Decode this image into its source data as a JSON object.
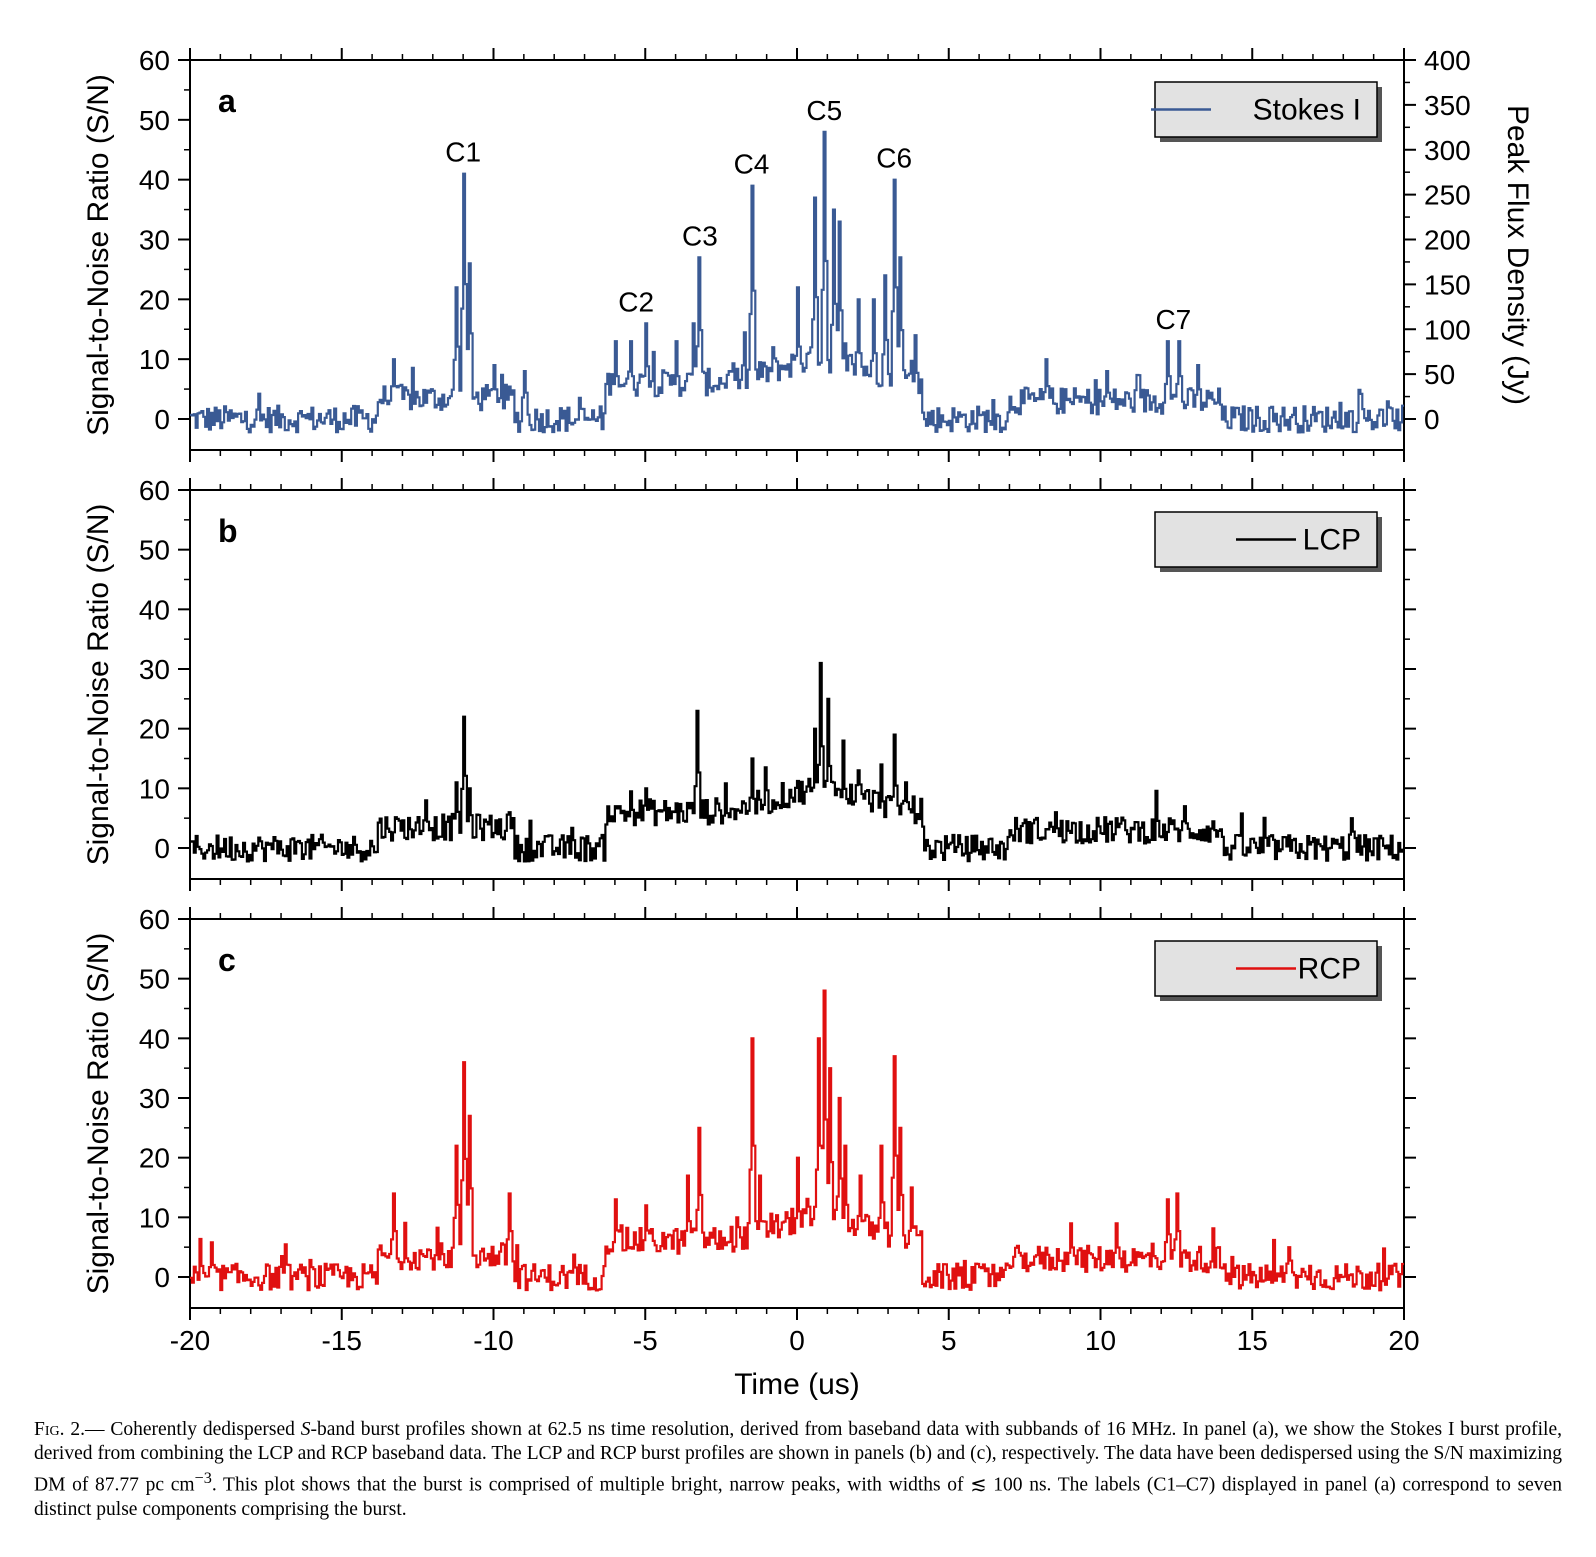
{
  "figure": {
    "caption_label": "Fig. 2.—",
    "caption_parts": {
      "p1": " Coherently dedispersed ",
      "s_band": "S",
      "p2": "-band burst profiles shown at 62.5 ns time resolution, derived from baseband data with subbands of 16 MHz. In panel (a), we show the Stokes I burst profile, derived from combining the LCP and RCP baseband data. The LCP and RCP burst profiles are shown in panels (b) and (c), respectively. The data have been dedispersed using the S/N maximizing DM of 87.77 pc cm",
      "exp": "−3",
      "p3": ". This plot shows that the burst is comprised of multiple bright, narrow peaks, with widths of ≲ 100 ns. The labels (C1–C7) displayed in panel (a) correspond to seven distinct pulse components comprising the burst."
    }
  },
  "colors": {
    "stokes": "#3a5a94",
    "lcp": "#000000",
    "rcp": "#e01010",
    "legend_bg": "#e2e2e2"
  },
  "chart_data": [
    {
      "type": "line",
      "panel": "a",
      "xlabel": "",
      "ylabel": "Signal-to-Noise Ratio (S/N)",
      "y2label": "Peak Flux Density (Jy)",
      "xlim": [
        -20,
        20
      ],
      "ylim": [
        -5,
        60
      ],
      "y2lim": [
        -34,
        400
      ],
      "y_ticks": [
        0,
        10,
        20,
        30,
        40,
        50,
        60
      ],
      "y2_ticks": [
        0,
        50,
        100,
        150,
        200,
        250,
        300,
        350,
        400
      ],
      "x_ticks": [
        -20,
        -15,
        -10,
        -5,
        0,
        5,
        10,
        15,
        20
      ],
      "series": [
        {
          "name": "Stokes I",
          "color": "#3a5a94",
          "step": 0.0625,
          "peaks": [
            {
              "x": -13.3,
              "y": 10
            },
            {
              "x": -11.2,
              "y": 22
            },
            {
              "x": -11.0,
              "y": 41
            },
            {
              "x": -10.8,
              "y": 26
            },
            {
              "x": -10.0,
              "y": 9
            },
            {
              "x": -9.0,
              "y": 8
            },
            {
              "x": -6.0,
              "y": 13
            },
            {
              "x": -5.5,
              "y": 13
            },
            {
              "x": -5.0,
              "y": 16
            },
            {
              "x": -4.0,
              "y": 13
            },
            {
              "x": -3.4,
              "y": 16
            },
            {
              "x": -3.2,
              "y": 27
            },
            {
              "x": -2.2,
              "y": 8
            },
            {
              "x": -1.5,
              "y": 39
            },
            {
              "x": -0.8,
              "y": 12
            },
            {
              "x": 0.0,
              "y": 22
            },
            {
              "x": 0.6,
              "y": 37
            },
            {
              "x": 0.9,
              "y": 48
            },
            {
              "x": 1.2,
              "y": 35
            },
            {
              "x": 1.4,
              "y": 33
            },
            {
              "x": 2.0,
              "y": 20
            },
            {
              "x": 2.5,
              "y": 20
            },
            {
              "x": 2.9,
              "y": 24
            },
            {
              "x": 3.2,
              "y": 40
            },
            {
              "x": 3.4,
              "y": 27
            },
            {
              "x": 3.9,
              "y": 14
            },
            {
              "x": 8.2,
              "y": 10
            },
            {
              "x": 10.2,
              "y": 8
            },
            {
              "x": 12.2,
              "y": 13
            },
            {
              "x": 12.6,
              "y": 13
            },
            {
              "x": 13.2,
              "y": 9
            }
          ]
        }
      ],
      "legend": "Stokes I",
      "legend_position": "top-right",
      "annotations": [
        {
          "text": "C1",
          "x": -11.0,
          "y": 41
        },
        {
          "text": "C2",
          "x": -5.3,
          "y": 16
        },
        {
          "text": "C3",
          "x": -3.2,
          "y": 27
        },
        {
          "text": "C4",
          "x": -1.5,
          "y": 39
        },
        {
          "text": "C5",
          "x": 0.9,
          "y": 48
        },
        {
          "text": "C6",
          "x": 3.2,
          "y": 40
        },
        {
          "text": "C7",
          "x": 12.4,
          "y": 13
        }
      ]
    },
    {
      "type": "line",
      "panel": "b",
      "xlabel": "",
      "ylabel": "Signal-to-Noise Ratio (S/N)",
      "xlim": [
        -20,
        20
      ],
      "ylim": [
        -5,
        60
      ],
      "y_ticks": [
        0,
        10,
        20,
        30,
        40,
        50,
        60
      ],
      "x_ticks": [
        -20,
        -15,
        -10,
        -5,
        0,
        5,
        10,
        15,
        20
      ],
      "series": [
        {
          "name": "LCP",
          "color": "#000000",
          "step": 0.0625,
          "peaks": [
            {
              "x": -12.2,
              "y": 8
            },
            {
              "x": -11.2,
              "y": 11
            },
            {
              "x": -11.0,
              "y": 22
            },
            {
              "x": -10.8,
              "y": 10
            },
            {
              "x": -9.5,
              "y": 6
            },
            {
              "x": -6.0,
              "y": 7
            },
            {
              "x": -5.0,
              "y": 10
            },
            {
              "x": -3.3,
              "y": 23
            },
            {
              "x": -3.1,
              "y": 8
            },
            {
              "x": -1.5,
              "y": 15
            },
            {
              "x": -0.8,
              "y": 8
            },
            {
              "x": 0.6,
              "y": 20
            },
            {
              "x": 0.8,
              "y": 31
            },
            {
              "x": 1.0,
              "y": 25
            },
            {
              "x": 1.5,
              "y": 18
            },
            {
              "x": 2.0,
              "y": 13
            },
            {
              "x": 2.8,
              "y": 14
            },
            {
              "x": 3.2,
              "y": 19
            },
            {
              "x": 3.6,
              "y": 11
            },
            {
              "x": 8.5,
              "y": 6
            },
            {
              "x": 10.5,
              "y": 5
            },
            {
              "x": 12.8,
              "y": 7
            },
            {
              "x": 18.3,
              "y": 5
            }
          ]
        }
      ],
      "legend": "LCP",
      "legend_position": "top-right"
    },
    {
      "type": "line",
      "panel": "c",
      "xlabel": "Time (us)",
      "ylabel": "Signal-to-Noise Ratio (S/N)",
      "xlim": [
        -20,
        20
      ],
      "ylim": [
        -5,
        60
      ],
      "y_ticks": [
        0,
        10,
        20,
        30,
        40,
        50,
        60
      ],
      "x_ticks": [
        -20,
        -15,
        -10,
        -5,
        0,
        5,
        10,
        15,
        20
      ],
      "series": [
        {
          "name": "RCP",
          "color": "#e01010",
          "step": 0.0625,
          "peaks": [
            {
              "x": -13.3,
              "y": 14
            },
            {
              "x": -11.2,
              "y": 22
            },
            {
              "x": -11.0,
              "y": 36
            },
            {
              "x": -10.8,
              "y": 27
            },
            {
              "x": -9.5,
              "y": 14
            },
            {
              "x": -6.0,
              "y": 13
            },
            {
              "x": -5.0,
              "y": 12
            },
            {
              "x": -3.6,
              "y": 17
            },
            {
              "x": -3.2,
              "y": 25
            },
            {
              "x": -2.0,
              "y": 10
            },
            {
              "x": -1.5,
              "y": 40
            },
            {
              "x": -1.2,
              "y": 17
            },
            {
              "x": 0.0,
              "y": 20
            },
            {
              "x": 0.7,
              "y": 40
            },
            {
              "x": 0.9,
              "y": 48
            },
            {
              "x": 1.1,
              "y": 35
            },
            {
              "x": 1.4,
              "y": 30
            },
            {
              "x": 1.6,
              "y": 22
            },
            {
              "x": 2.1,
              "y": 17
            },
            {
              "x": 2.8,
              "y": 22
            },
            {
              "x": 3.2,
              "y": 37
            },
            {
              "x": 3.4,
              "y": 25
            },
            {
              "x": 3.8,
              "y": 15
            },
            {
              "x": 9.0,
              "y": 9
            },
            {
              "x": 10.5,
              "y": 9
            },
            {
              "x": 12.2,
              "y": 13
            },
            {
              "x": 12.5,
              "y": 14
            },
            {
              "x": 16.2,
              "y": 5
            }
          ]
        }
      ],
      "legend": "RCP",
      "legend_position": "top-right"
    }
  ]
}
